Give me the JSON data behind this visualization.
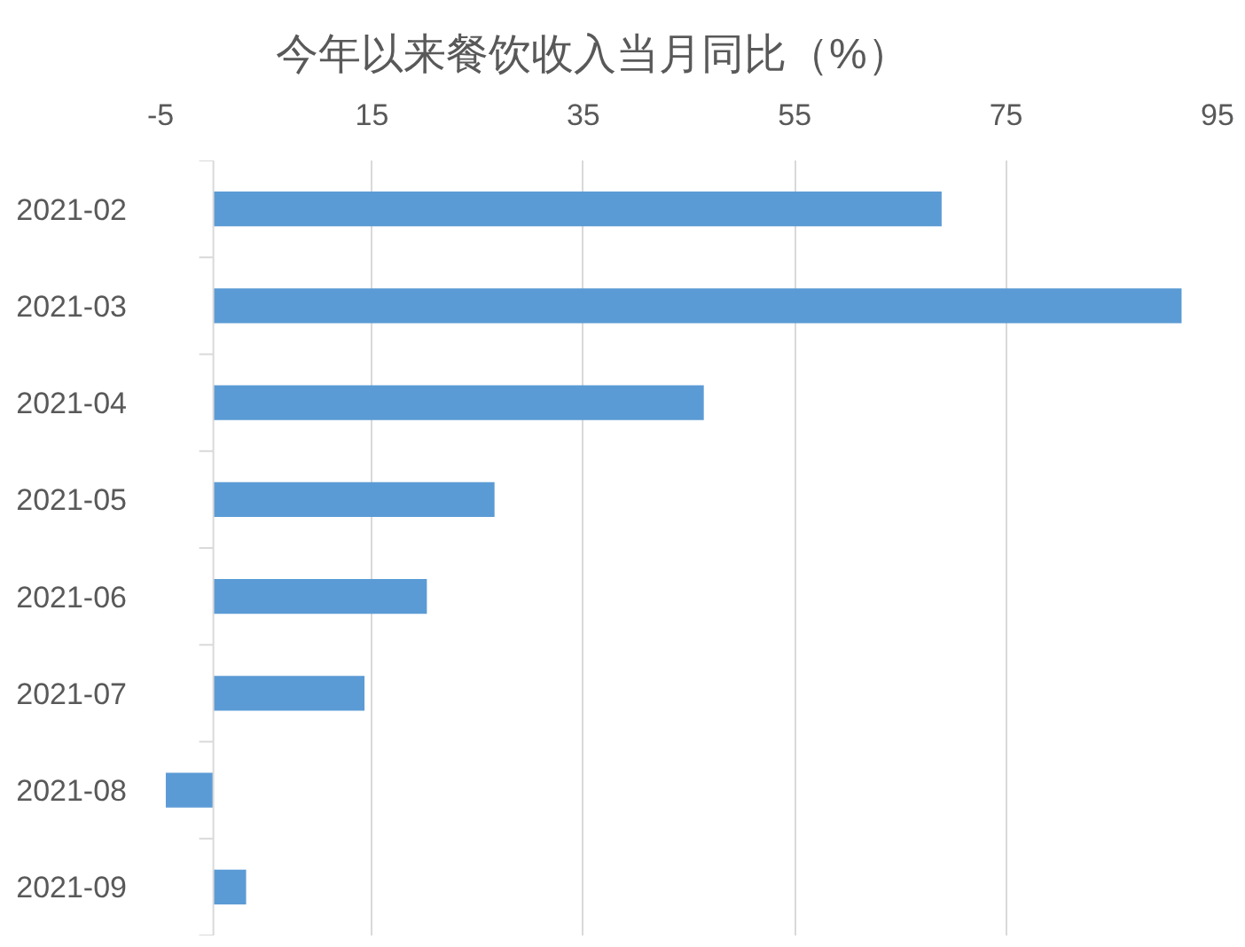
{
  "chart_data": {
    "type": "bar",
    "orientation": "horizontal",
    "title": "今年以来餐饮收入当月同比（%）",
    "categories": [
      "2021-02",
      "2021-03",
      "2021-04",
      "2021-05",
      "2021-06",
      "2021-07",
      "2021-08",
      "2021-09"
    ],
    "values": [
      68.9,
      91.6,
      46.4,
      26.6,
      20.2,
      14.3,
      -4.5,
      3.1
    ],
    "color": "#5b9bd5",
    "xlim": [
      -5,
      95
    ],
    "xticks": [
      -5,
      15,
      35,
      55,
      75,
      95
    ],
    "grid": "x"
  }
}
